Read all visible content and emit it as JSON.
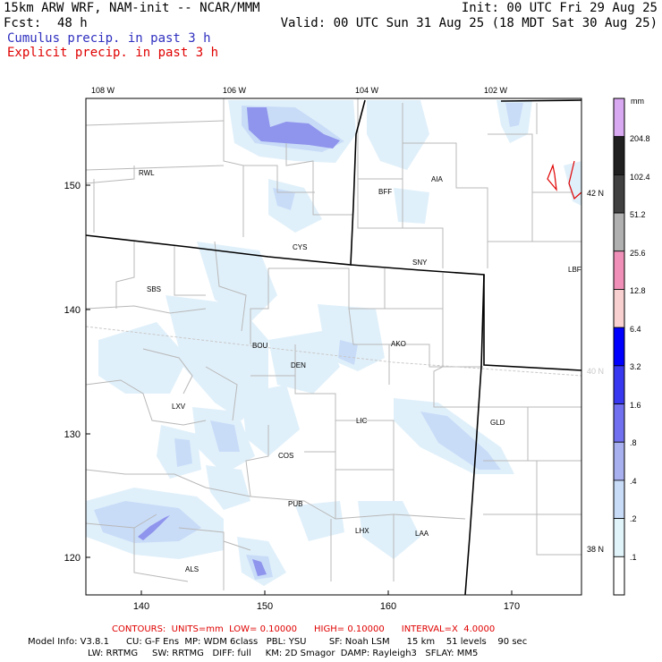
{
  "header": {
    "model_title": "15km ARW WRF, NAM-init -- NCAR/MMM",
    "init_time": "Init: 00 UTC Fri 29 Aug 25",
    "forecast_label": "Fcst:",
    "forecast_hours": "48 h",
    "valid_time": "Valid: 00 UTC Sun 31 Aug 25 (18 MDT Sat 30 Aug 25)",
    "cumulus_label": "Cumulus precip. in past 3 h",
    "explicit_label": "Explicit precip. in past 3 h",
    "cumulus_color": "#3030c0",
    "explicit_color": "#e00000"
  },
  "map": {
    "longitude_labels": [
      "108 W",
      "106 W",
      "104 W",
      "102 W"
    ],
    "latitude_labels": [
      "42 N",
      "40 N",
      "38 N"
    ],
    "x_grid_labels": [
      "140",
      "150",
      "160",
      "170"
    ],
    "y_grid_labels": [
      "150",
      "140",
      "130",
      "120"
    ],
    "stations": [
      "RWL",
      "BFF",
      "AIA",
      "CYS",
      "SNY",
      "LBF",
      "SBS",
      "AKO",
      "BOU",
      "DEN",
      "LXV",
      "LIC",
      "GLD",
      "COS",
      "PUB",
      "LHX",
      "LAA",
      "ALS"
    ]
  },
  "colorbar": {
    "unit": "mm",
    "levels": [
      "204.8",
      "102.4",
      "51.2",
      "25.6",
      "12.8",
      "6.4",
      "3.2",
      "1.6",
      ".8",
      ".4",
      ".2",
      ".1"
    ],
    "colors": [
      "#d8a8f0",
      "#202020",
      "#404040",
      "#b0b0b0",
      "#f090b8",
      "#f8d0d0",
      "#0000ff",
      "#3838f0",
      "#7070f0",
      "#a8b0f0",
      "#c8dcf8",
      "#e0f4fa",
      "#ffffff"
    ]
  },
  "footer": {
    "contours": "CONTOURS:  UNITS=mm  LOW= 0.10000      HIGH= 0.10000      INTERVAL=X  4.0000",
    "model_info_1": "Model Info: V3.8.1      CU: G-F Ens  MP: WDM 6class   PBL: YSU        SF: Noah LSM      15 km    51 levels    90 sec",
    "model_info_2": "LW: RRTMG     SW: RRTMG   DIFF: full     KM: 2D Smagor  DAMP: Rayleigh3   SFLAY: MM5"
  }
}
